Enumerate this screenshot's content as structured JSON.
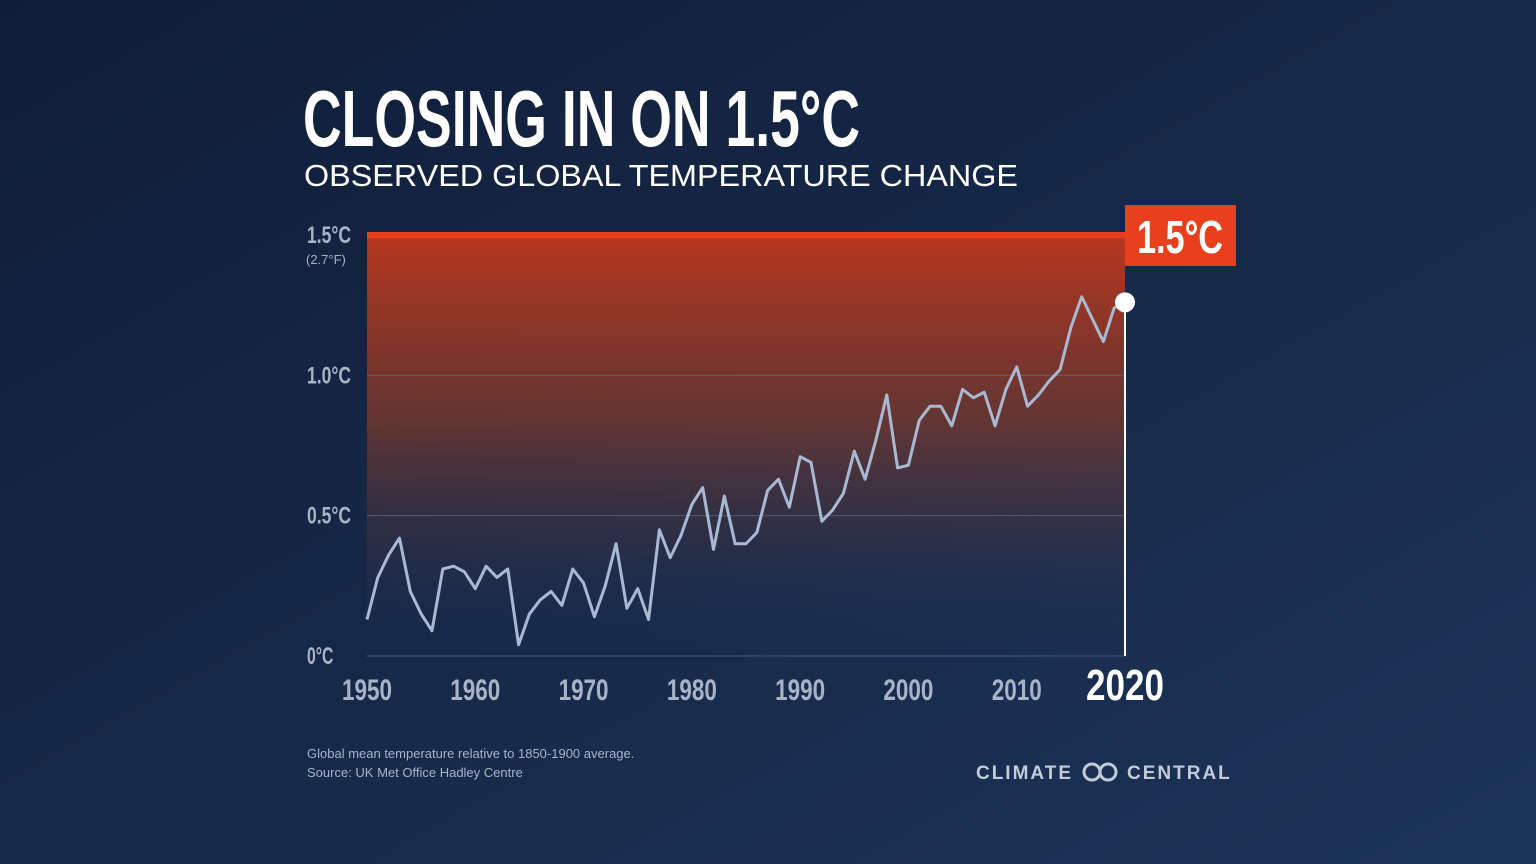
{
  "chart_data": {
    "type": "line",
    "title": "CLOSING IN ON 1.5°C",
    "subtitle": "OBSERVED GLOBAL TEMPERATURE CHANGE",
    "y_annotation": "(2.7°F)",
    "threshold": {
      "value": 1.5,
      "label": "1.5°C",
      "color": "#e8401c"
    },
    "notes": [
      "Global mean temperature relative to 1850-1900 average.",
      "Source: UK Met Office Hadley Centre"
    ],
    "logo": "CLIMATE CENTRAL",
    "x": [
      1950,
      1951,
      1952,
      1953,
      1954,
      1955,
      1956,
      1957,
      1958,
      1959,
      1960,
      1961,
      1962,
      1963,
      1964,
      1965,
      1966,
      1967,
      1968,
      1969,
      1970,
      1971,
      1972,
      1973,
      1974,
      1975,
      1976,
      1977,
      1978,
      1979,
      1980,
      1981,
      1982,
      1983,
      1984,
      1985,
      1986,
      1987,
      1988,
      1989,
      1990,
      1991,
      1992,
      1993,
      1994,
      1995,
      1996,
      1997,
      1998,
      1999,
      2000,
      2001,
      2002,
      2003,
      2004,
      2005,
      2006,
      2007,
      2008,
      2009,
      2010,
      2011,
      2012,
      2013,
      2014,
      2015,
      2016,
      2017,
      2018,
      2019,
      2020
    ],
    "series": [
      {
        "color": "#a9b9d3",
        "values": [
          0.13,
          0.28,
          0.36,
          0.42,
          0.23,
          0.15,
          0.09,
          0.31,
          0.32,
          0.3,
          0.24,
          0.32,
          0.28,
          0.31,
          0.04,
          0.15,
          0.2,
          0.23,
          0.18,
          0.31,
          0.26,
          0.14,
          0.25,
          0.4,
          0.17,
          0.24,
          0.13,
          0.45,
          0.35,
          0.43,
          0.54,
          0.6,
          0.38,
          0.57,
          0.4,
          0.4,
          0.44,
          0.59,
          0.63,
          0.53,
          0.71,
          0.69,
          0.48,
          0.52,
          0.58,
          0.73,
          0.63,
          0.77,
          0.93,
          0.67,
          0.68,
          0.84,
          0.89,
          0.89,
          0.82,
          0.95,
          0.92,
          0.94,
          0.82,
          0.95,
          1.03,
          0.89,
          0.93,
          0.98,
          1.02,
          1.17,
          1.28,
          1.2,
          1.12,
          1.24,
          1.26
        ]
      }
    ],
    "xlim": [
      1950,
      2020
    ],
    "xticks": [
      1950,
      1960,
      1970,
      1980,
      1990,
      2000,
      2010,
      2020
    ],
    "ylim": [
      0,
      1.5
    ],
    "yticks": [
      {
        "value": 0,
        "label": "0°C"
      },
      {
        "value": 0.5,
        "label": "0.5°C"
      },
      {
        "value": 1.0,
        "label": "1.0°C"
      },
      {
        "value": 1.5,
        "label": "1.5°C"
      }
    ],
    "grid": true
  }
}
